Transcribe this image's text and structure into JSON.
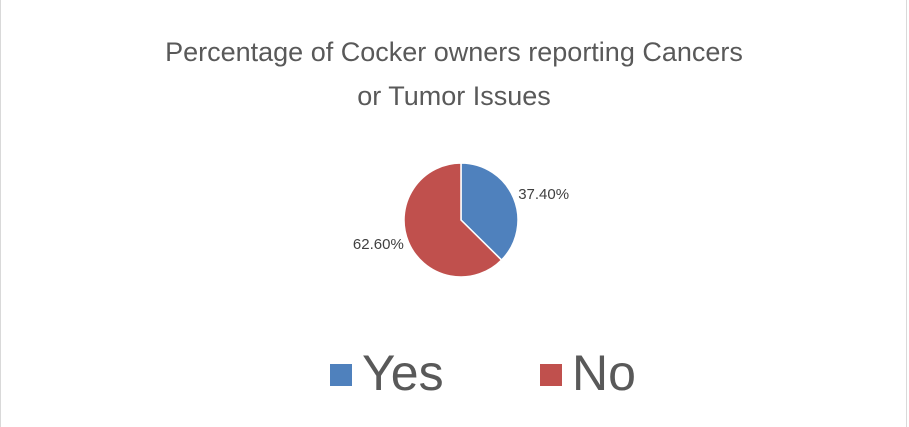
{
  "chart_data": {
    "type": "pie",
    "title": "Percentage of Cocker owners reporting Cancers or Tumor Issues",
    "categories": [
      "Yes",
      "No"
    ],
    "values": [
      37.4,
      62.6
    ],
    "value_labels": [
      "37.40%",
      "62.60%"
    ],
    "colors": [
      "#4f81bd",
      "#c0504d"
    ],
    "legend": "bottom"
  }
}
